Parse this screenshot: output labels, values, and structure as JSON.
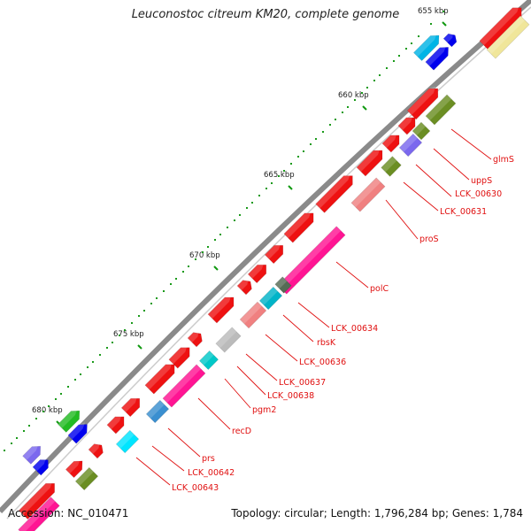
{
  "title": "Leuconostoc citreum KM20, complete genome",
  "footer": {
    "accession_label": "Accession:",
    "accession": "NC_010471",
    "topology_label": "Topology:",
    "topology": "circular",
    "length_label": "Length:",
    "length": "1,796,284 bp",
    "genes_label": "Genes:",
    "genes": "1,784"
  },
  "scale_ticks": [
    "655 kbp",
    "660 kbp",
    "665 kbp",
    "670 kbp",
    "675 kbp",
    "680 kbp"
  ],
  "gene_labels": [
    "glmS",
    "uppS",
    "LCK_00630",
    "LCK_00631",
    "proS",
    "polC",
    "LCK_00634",
    "rbsK",
    "LCK_00636",
    "LCK_00637",
    "LCK_00638",
    "pgm2",
    "recD",
    "prs",
    "LCK_00642",
    "LCK_00643"
  ],
  "colors": {
    "backbone": "#888888",
    "forward_cds": "#ee1111",
    "label": "#e01010",
    "tick": "#119911"
  }
}
